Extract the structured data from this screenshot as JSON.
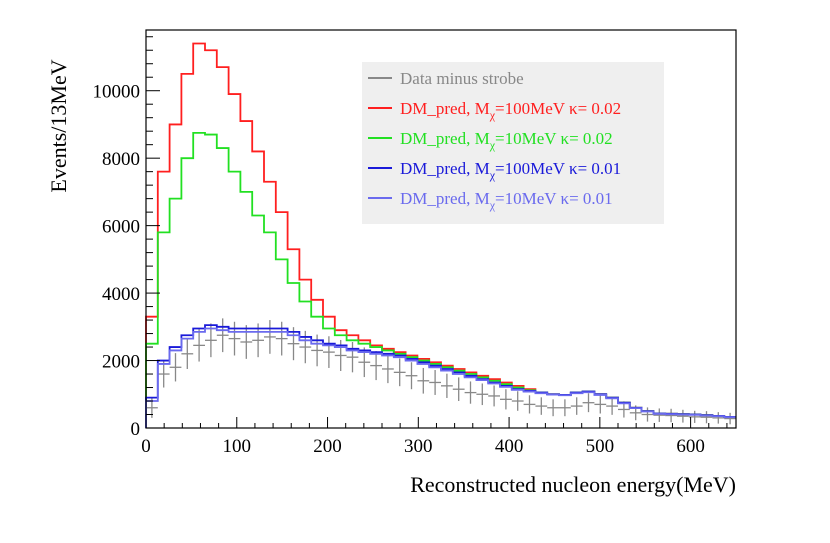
{
  "chart_data": {
    "type": "line",
    "title": "",
    "xlabel": "Reconstructed nucleon energy(MeV)",
    "ylabel": "Events/13MeV",
    "xlim": [
      0,
      650
    ],
    "ylim": [
      0,
      11800
    ],
    "bin_width": 13,
    "x_ticks": [
      0,
      100,
      200,
      300,
      400,
      500,
      600
    ],
    "x_tick_labels": [
      "0",
      "100",
      "200",
      "300",
      "400",
      "500",
      "600"
    ],
    "y_ticks": [
      0,
      2000,
      4000,
      6000,
      8000,
      10000
    ],
    "y_tick_labels": [
      "0",
      "2000",
      "4000",
      "6000",
      "8000",
      "10000"
    ],
    "grid": false,
    "legend_position": "top-right",
    "x": [
      0,
      13,
      26,
      39,
      52,
      65,
      78,
      91,
      104,
      117,
      130,
      143,
      156,
      169,
      182,
      195,
      208,
      221,
      234,
      247,
      260,
      273,
      286,
      299,
      312,
      325,
      338,
      351,
      364,
      377,
      390,
      403,
      416,
      429,
      442,
      455,
      468,
      481,
      494,
      507,
      520,
      533,
      546,
      559,
      572,
      585,
      598,
      611,
      624,
      637
    ],
    "series": [
      {
        "name": "Data minus strobe",
        "style": "errorbar",
        "color": "#888888",
        "values": [
          600,
          1600,
          1800,
          2200,
          2450,
          2600,
          2750,
          2650,
          2550,
          2600,
          2700,
          2650,
          2500,
          2400,
          2300,
          2250,
          2150,
          2100,
          1950,
          1850,
          1750,
          1650,
          1550,
          1400,
          1350,
          1250,
          1150,
          1050,
          1000,
          950,
          850,
          800,
          700,
          650,
          600,
          600,
          650,
          750,
          700,
          650,
          550,
          450,
          400,
          380,
          370,
          350,
          330,
          320,
          300,
          280
        ],
        "errors": [
          300,
          400,
          420,
          450,
          480,
          500,
          500,
          500,
          500,
          500,
          500,
          500,
          490,
          480,
          470,
          470,
          460,
          450,
          440,
          430,
          420,
          410,
          400,
          380,
          370,
          360,
          350,
          330,
          320,
          310,
          300,
          290,
          270,
          260,
          250,
          250,
          260,
          280,
          270,
          260,
          240,
          220,
          210,
          200,
          200,
          190,
          180,
          180,
          170,
          170
        ]
      },
      {
        "name": "DM_pred, M_χ=100MeV κ= 0.02",
        "legend_parts": [
          "DM_pred, M",
          "χ",
          "=100MeV κ= 0.02"
        ],
        "style": "step",
        "color": "#ff1f1f",
        "values": [
          3300,
          7600,
          9000,
          10500,
          11400,
          11200,
          10700,
          9900,
          9100,
          8200,
          7300,
          6400,
          5300,
          4400,
          3800,
          3300,
          2900,
          2750,
          2600,
          2450,
          2350,
          2250,
          2150,
          2050,
          1950,
          1850,
          1750,
          1650,
          1550,
          1450,
          1350,
          1250,
          1150,
          1050,
          1000,
          980,
          1050,
          1080,
          1000,
          900,
          750,
          600,
          500,
          430,
          420,
          410,
          400,
          380,
          360,
          330
        ]
      },
      {
        "name": "DM_pred, M_χ=10MeV κ= 0.02",
        "legend_parts": [
          "DM_pred, M",
          "χ",
          "=10MeV κ= 0.02"
        ],
        "style": "step",
        "color": "#22e022",
        "values": [
          2500,
          5800,
          6800,
          8000,
          8750,
          8700,
          8300,
          7600,
          7000,
          6300,
          5800,
          5000,
          4300,
          3750,
          3300,
          2950,
          2750,
          2600,
          2500,
          2400,
          2300,
          2200,
          2100,
          2000,
          1900,
          1800,
          1700,
          1600,
          1500,
          1400,
          1300,
          1200,
          1120,
          1050,
          1000,
          980,
          1050,
          1080,
          1000,
          900,
          750,
          600,
          500,
          430,
          420,
          410,
          400,
          380,
          360,
          330
        ]
      },
      {
        "name": "DM_pred, M_χ=100MeV κ= 0.01",
        "legend_parts": [
          "DM_pred, M",
          "χ",
          "=100MeV κ= 0.01"
        ],
        "style": "step",
        "color": "#1a1ad9",
        "values": [
          900,
          2000,
          2400,
          2750,
          2950,
          3050,
          3000,
          2950,
          2950,
          2950,
          2950,
          2950,
          2850,
          2700,
          2600,
          2500,
          2450,
          2350,
          2300,
          2250,
          2200,
          2150,
          2050,
          1950,
          1850,
          1750,
          1650,
          1550,
          1450,
          1350,
          1250,
          1150,
          1100,
          1050,
          1000,
          980,
          1050,
          1080,
          1000,
          900,
          750,
          600,
          500,
          430,
          420,
          410,
          400,
          380,
          360,
          330
        ]
      },
      {
        "name": "DM_pred, M_χ=10MeV κ= 0.01",
        "legend_parts": [
          "DM_pred, M",
          "χ",
          "=10MeV κ= 0.01"
        ],
        "style": "step",
        "color": "#6a6aee",
        "values": [
          800,
          1900,
          2300,
          2650,
          2850,
          2950,
          2900,
          2850,
          2850,
          2850,
          2850,
          2850,
          2750,
          2600,
          2500,
          2450,
          2400,
          2300,
          2250,
          2200,
          2150,
          2100,
          2000,
          1900,
          1800,
          1700,
          1600,
          1500,
          1420,
          1320,
          1220,
          1130,
          1080,
          1030,
          990,
          970,
          1030,
          1060,
          980,
          880,
          730,
          590,
          490,
          420,
          410,
          400,
          390,
          370,
          350,
          320
        ]
      }
    ]
  }
}
